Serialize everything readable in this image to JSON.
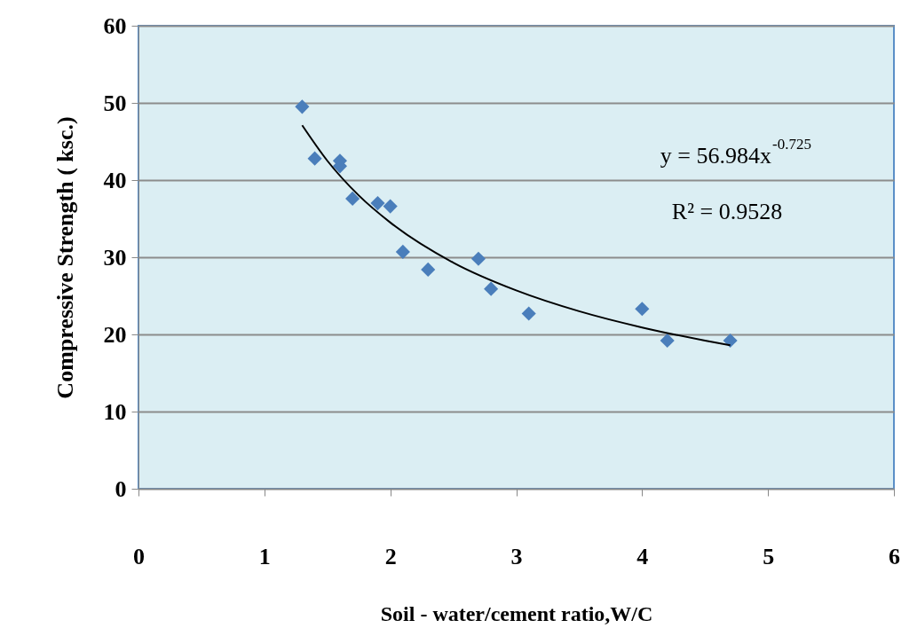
{
  "chart_data": {
    "type": "scatter",
    "xlabel": "Soil - water/cement ratio,W/C",
    "ylabel": "Compressive Strength ( ksc.)",
    "xlim": [
      0,
      6
    ],
    "xticks": [
      0,
      1,
      2,
      3,
      4,
      5,
      6
    ],
    "ylim": [
      0,
      60
    ],
    "yticks": [
      0,
      10,
      20,
      30,
      40,
      50,
      60
    ],
    "grid": "y",
    "marker": "diamond",
    "annotations": [
      "y = 56.984x$^{-0.725}$",
      "R² = 0.9528"
    ],
    "series": [
      {
        "color": "#4a7ebb",
        "x": [
          1.3,
          1.4,
          1.6,
          1.6,
          1.7,
          1.9,
          2.0,
          2.1,
          2.3,
          2.7,
          2.8,
          3.1,
          4.0,
          4.2,
          4.7
        ],
        "values": [
          49.5,
          42.8,
          42.5,
          41.8,
          37.6,
          37.0,
          36.6,
          30.7,
          28.4,
          29.8,
          25.9,
          22.7,
          23.3,
          19.2,
          19.2
        ]
      },
      {
        "type": "line",
        "color": "#000000",
        "line_style": "solid",
        "marker": "none",
        "x": [
          1.3,
          1.5,
          1.75,
          2.0,
          2.5,
          3.0,
          3.5,
          4.0,
          4.5,
          4.7
        ],
        "values": [
          47.1,
          42.5,
          38.0,
          34.5,
          29.3,
          25.7,
          23.0,
          20.9,
          19.2,
          18.6
        ]
      }
    ]
  }
}
